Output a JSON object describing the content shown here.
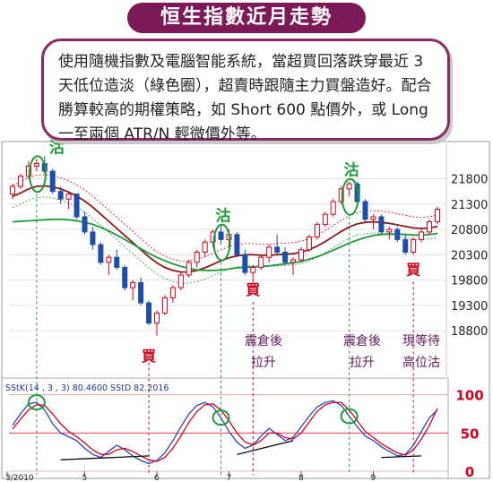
{
  "banner": {
    "title": "恒生指數近月走勢"
  },
  "note": {
    "text": "使用隨機指數及電腦智能系統，當超買回落跌穿最近 3 天低位造淡（綠色圈），超賣時跟隨主力買盤造好。配合勝算較高的期權策略，如 Short 600 點價外，或 Long 一至兩個 ATR/N 輕微價外等。"
  },
  "colors": {
    "up": "#d0021b",
    "down": "#1f4ea8",
    "ma_slow": "#8b1a1a",
    "ma_mid": "#1e9a3a",
    "signal": "#d0021b",
    "circle": "#1e9a3a"
  },
  "chart_data": [
    {
      "type": "candlestick",
      "title": "",
      "ylim": [
        17900,
        22500
      ],
      "y_ticks": [
        21800,
        21300,
        20800,
        20300,
        19800,
        19300,
        18800
      ],
      "x_ticks": [
        "3/2010",
        "5",
        "6",
        "7",
        "8",
        "9"
      ],
      "annotations": {
        "sell": [
          {
            "label": "沽",
            "value": 22000
          },
          {
            "label": "沽",
            "value": 20650
          },
          {
            "label": "沽",
            "value": 21550
          }
        ],
        "buy": [
          {
            "label": "買",
            "value": 18700
          },
          {
            "label": "買",
            "value": 19900
          },
          {
            "label": "買",
            "value": 20300
          }
        ],
        "notes": [
          "震倉後拉升",
          "震倉後拉升",
          "現等待高位沽"
        ]
      },
      "ohlc": [
        [
          21500,
          21700,
          21400,
          21650
        ],
        [
          21650,
          21900,
          21600,
          21850
        ],
        [
          21850,
          22150,
          21800,
          22050
        ],
        [
          22050,
          22200,
          21950,
          22100
        ],
        [
          22100,
          22250,
          21900,
          21950
        ],
        [
          21950,
          22000,
          21500,
          21550
        ],
        [
          21550,
          21650,
          21300,
          21400
        ],
        [
          21400,
          21550,
          21200,
          21500
        ],
        [
          21500,
          21500,
          21000,
          21050
        ],
        [
          21050,
          21150,
          20700,
          20750
        ],
        [
          20750,
          20850,
          20400,
          20500
        ],
        [
          20500,
          20550,
          20100,
          20150
        ],
        [
          20150,
          20300,
          19900,
          20250
        ],
        [
          20250,
          20400,
          20000,
          20050
        ],
        [
          20050,
          20100,
          19600,
          19650
        ],
        [
          19650,
          19800,
          19400,
          19750
        ],
        [
          19750,
          19850,
          19300,
          19350
        ],
        [
          19350,
          19400,
          18900,
          18950
        ],
        [
          18950,
          19200,
          18700,
          19150
        ],
        [
          19150,
          19500,
          19100,
          19450
        ],
        [
          19450,
          19700,
          19350,
          19650
        ],
        [
          19650,
          19950,
          19600,
          19900
        ],
        [
          19900,
          20200,
          19850,
          20150
        ],
        [
          20150,
          20400,
          20050,
          20350
        ],
        [
          20350,
          20600,
          20250,
          20550
        ],
        [
          20550,
          20800,
          20450,
          20750
        ],
        [
          20750,
          20900,
          20500,
          20600
        ],
        [
          20600,
          20800,
          20400,
          20700
        ],
        [
          20700,
          20750,
          20250,
          20300
        ],
        [
          20300,
          20400,
          19900,
          19950
        ],
        [
          19950,
          20100,
          19750,
          20050
        ],
        [
          20050,
          20300,
          20000,
          20250
        ],
        [
          20250,
          20500,
          20150,
          20450
        ],
        [
          20450,
          20700,
          20300,
          20350
        ],
        [
          20350,
          20450,
          20100,
          20150
        ],
        [
          20150,
          20250,
          19900,
          20200
        ],
        [
          20200,
          20450,
          20150,
          20400
        ],
        [
          20400,
          20700,
          20350,
          20650
        ],
        [
          20650,
          20950,
          20600,
          20900
        ],
        [
          20900,
          21150,
          20850,
          21100
        ],
        [
          21100,
          21400,
          21050,
          21350
        ],
        [
          21350,
          21650,
          21300,
          21600
        ],
        [
          21600,
          21750,
          21450,
          21700
        ],
        [
          21700,
          21750,
          21300,
          21350
        ],
        [
          21350,
          21400,
          20950,
          21000
        ],
        [
          21000,
          21100,
          20800,
          21050
        ],
        [
          21050,
          21100,
          20700,
          20750
        ],
        [
          20750,
          20850,
          20600,
          20800
        ],
        [
          20800,
          20850,
          20550,
          20600
        ],
        [
          20600,
          20700,
          20300,
          20350
        ],
        [
          20350,
          20650,
          20300,
          20600
        ],
        [
          20600,
          20800,
          20550,
          20750
        ],
        [
          20750,
          21000,
          20700,
          20950
        ],
        [
          20950,
          21250,
          20900,
          21200
        ]
      ],
      "ma_slow": [
        21450,
        21520,
        21600,
        21650,
        21660,
        21640,
        21600,
        21540,
        21460,
        21360,
        21240,
        21100,
        20960,
        20820,
        20680,
        20540,
        20400,
        20260,
        20140,
        20050,
        19990,
        19960,
        19960,
        19990,
        20040,
        20110,
        20180,
        20240,
        20280,
        20300,
        20300,
        20290,
        20290,
        20300,
        20310,
        20320,
        20350,
        20400,
        20470,
        20560,
        20660,
        20760,
        20850,
        20910,
        20940,
        20950,
        20940,
        20920,
        20890,
        20860,
        20830,
        20820,
        20830,
        20860
      ],
      "ma_mid": [
        20950,
        20960,
        20970,
        20980,
        20990,
        21000,
        21000,
        20990,
        20970,
        20940,
        20900,
        20840,
        20770,
        20690,
        20600,
        20510,
        20420,
        20330,
        20250,
        20180,
        20120,
        20070,
        20030,
        20000,
        19990,
        19990,
        20000,
        20020,
        20040,
        20050,
        20060,
        20070,
        20080,
        20100,
        20120,
        20140,
        20170,
        20210,
        20260,
        20320,
        20390,
        20460,
        20530,
        20590,
        20640,
        20680,
        20700,
        20710,
        20710,
        20700,
        20690,
        20690,
        20700,
        20720
      ]
    },
    {
      "type": "line",
      "title": "SStK(14 , 3 , 3) 80.4600  SStD  82.2016",
      "ylim": [
        0,
        110
      ],
      "y_ticks": [
        100,
        50,
        0
      ],
      "x_ticks": [
        "3/2010",
        "5",
        "6",
        "7",
        "8",
        "9"
      ],
      "series": [
        {
          "name": "SStK(14 , 3 , 3)",
          "values": [
            60,
            75,
            88,
            90,
            80,
            62,
            50,
            45,
            40,
            30,
            22,
            18,
            26,
            34,
            28,
            20,
            14,
            10,
            14,
            24,
            40,
            58,
            75,
            86,
            90,
            84,
            70,
            52,
            38,
            30,
            34,
            46,
            56,
            48,
            40,
            44,
            58,
            72,
            84,
            90,
            92,
            86,
            72,
            58,
            46,
            40,
            32,
            26,
            20,
            22,
            34,
            52,
            70,
            80
          ]
        },
        {
          "name": "SStD",
          "values": [
            55,
            68,
            80,
            87,
            86,
            75,
            62,
            52,
            45,
            37,
            28,
            22,
            22,
            28,
            30,
            26,
            20,
            15,
            13,
            18,
            30,
            46,
            64,
            78,
            87,
            88,
            80,
            66,
            50,
            38,
            34,
            40,
            50,
            50,
            44,
            42,
            50,
            64,
            78,
            87,
            90,
            90,
            80,
            66,
            52,
            44,
            36,
            30,
            24,
            21,
            28,
            42,
            60,
            82
          ]
        }
      ]
    }
  ],
  "axis_font_note": ""
}
